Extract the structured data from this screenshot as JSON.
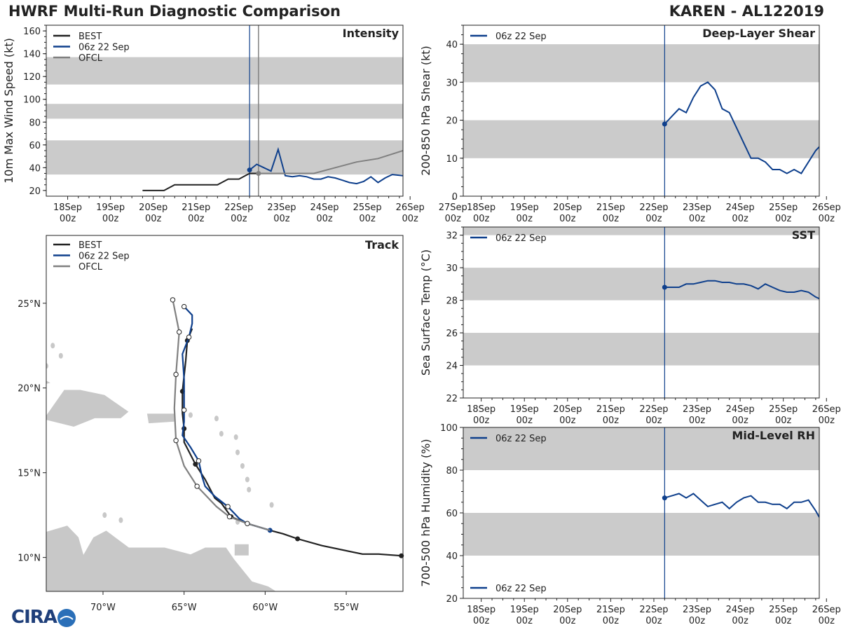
{
  "header": {
    "title": "HWRF Multi-Run Diagnostic Comparison",
    "storm": "KAREN - AL122019"
  },
  "logo": {
    "text": "CIRA"
  },
  "colors": {
    "best": "#222222",
    "run": "#0e3f8c",
    "ofcl": "#808080",
    "band": "#cbcbcb",
    "land": "#c8c8c8"
  },
  "time_ticks": [
    "18Sep\n00z",
    "19Sep\n00z",
    "20Sep\n00z",
    "21Sep\n00z",
    "22Sep\n00z",
    "23Sep\n00z",
    "24Sep\n00z",
    "25Sep\n00z",
    "26Sep\n00z",
    "27Sep\n00z"
  ],
  "init_time_hours": 102,
  "chart_data": [
    {
      "id": "intensity",
      "type": "line",
      "title": "Intensity",
      "ylabel": "10m Max Wind Speed (kt)",
      "ylim": [
        15,
        165
      ],
      "xlim": [
        -12,
        188
      ],
      "yticks": [
        20,
        40,
        60,
        80,
        100,
        120,
        140,
        160
      ],
      "bands": [
        [
          34,
          64
        ],
        [
          83,
          96
        ],
        [
          113,
          137
        ]
      ],
      "init_line": 102,
      "ofcl_line": 107,
      "legend": [
        "BEST",
        "06z 22 Sep",
        "OFCL"
      ],
      "series": [
        {
          "name": "BEST",
          "color": "best",
          "x": [
            42,
            48,
            54,
            60,
            66,
            72,
            78,
            84,
            90,
            96,
            102,
            108
          ],
          "y": [
            20,
            20,
            20,
            25,
            25,
            25,
            25,
            25,
            30,
            30,
            35,
            35
          ]
        },
        {
          "name": "06z 22 Sep",
          "color": "run",
          "x": [
            102,
            106,
            110,
            114,
            118,
            122,
            126,
            130,
            134,
            138,
            142,
            146,
            150,
            154,
            158,
            162,
            166,
            170,
            174,
            178,
            182,
            188
          ],
          "y": [
            38,
            43,
            40,
            37,
            56,
            33,
            32,
            33,
            32,
            30,
            30,
            32,
            31,
            29,
            27,
            26,
            28,
            32,
            27,
            31,
            34,
            33
          ],
          "marker_first": true
        },
        {
          "name": "OFCL",
          "color": "ofcl",
          "x": [
            107,
            114,
            126,
            138,
            150,
            162,
            174,
            188
          ],
          "y": [
            35,
            35,
            35,
            35,
            40,
            45,
            48,
            55
          ],
          "marker_first": true
        }
      ]
    },
    {
      "id": "shear",
      "type": "line",
      "title": "Deep-Layer Shear",
      "ylabel": "200-850 hPa Shear (kt)",
      "ylim": [
        0,
        45
      ],
      "xlim": [
        -10,
        188
      ],
      "yticks": [
        0,
        10,
        20,
        30,
        40
      ],
      "bands": [
        [
          10,
          20
        ],
        [
          30,
          40
        ]
      ],
      "init_line": 102,
      "legend": [
        "06z 22 Sep"
      ],
      "series": [
        {
          "name": "06z 22 Sep",
          "color": "run",
          "x": [
            102,
            106,
            110,
            114,
            118,
            122,
            126,
            130,
            134,
            138,
            142,
            146,
            150,
            154,
            158,
            162,
            166,
            170,
            174,
            178,
            182,
            186,
            188
          ],
          "y": [
            19,
            21,
            23,
            22,
            26,
            29,
            30,
            28,
            23,
            22,
            18,
            14,
            10,
            10,
            9,
            7,
            7,
            6,
            7,
            6,
            9,
            12,
            13
          ],
          "marker_first": true
        }
      ]
    },
    {
      "id": "sst",
      "type": "line",
      "title": "SST",
      "ylabel": "Sea Surface Temp (°C)",
      "ylim": [
        22,
        32.5
      ],
      "xlim": [
        -10,
        188
      ],
      "yticks": [
        22,
        24,
        26,
        28,
        30,
        32
      ],
      "bands": [
        [
          24,
          26
        ],
        [
          28,
          30
        ],
        [
          32,
          34
        ]
      ],
      "init_line": 102,
      "legend": [
        "06z 22 Sep"
      ],
      "series": [
        {
          "name": "06z 22 Sep",
          "color": "run",
          "x": [
            102,
            106,
            110,
            114,
            118,
            122,
            126,
            130,
            134,
            138,
            142,
            146,
            150,
            154,
            158,
            162,
            166,
            170,
            174,
            178,
            182,
            186,
            188
          ],
          "y": [
            28.8,
            28.8,
            28.8,
            29.0,
            29.0,
            29.1,
            29.2,
            29.2,
            29.1,
            29.1,
            29.0,
            29.0,
            28.9,
            28.7,
            29.0,
            28.8,
            28.6,
            28.5,
            28.5,
            28.6,
            28.5,
            28.2,
            28.1
          ],
          "marker_first": true
        }
      ]
    },
    {
      "id": "rh",
      "type": "line",
      "title": "Mid-Level RH",
      "ylabel": "700-500 hPa Humidity (%)",
      "ylim": [
        20,
        100
      ],
      "xlim": [
        -10,
        188
      ],
      "yticks": [
        20,
        40,
        60,
        80,
        100
      ],
      "bands": [
        [
          40,
          60
        ],
        [
          80,
          100
        ]
      ],
      "init_line": 102,
      "legend": [
        "06z 22 Sep"
      ],
      "series": [
        {
          "name": "06z 22 Sep",
          "color": "run",
          "x": [
            102,
            106,
            110,
            114,
            118,
            122,
            126,
            130,
            134,
            138,
            142,
            146,
            150,
            154,
            158,
            162,
            166,
            170,
            174,
            178,
            182,
            186,
            188
          ],
          "y": [
            67,
            68,
            69,
            67,
            69,
            66,
            63,
            64,
            65,
            62,
            65,
            67,
            68,
            65,
            65,
            64,
            64,
            62,
            65,
            65,
            66,
            61,
            58
          ],
          "marker_first": true
        }
      ]
    },
    {
      "id": "track",
      "type": "scatter",
      "title": "Track",
      "xlim": [
        -73.5,
        -51.5
      ],
      "ylim": [
        8,
        29
      ],
      "xticks": [
        -70,
        -65,
        -60,
        -55
      ],
      "xticklabels": [
        "70°W",
        "65°W",
        "60°W",
        "55°W"
      ],
      "yticks": [
        10,
        15,
        20,
        25
      ],
      "yticklabels": [
        "10°N",
        "15°N",
        "20°N",
        "25°N"
      ],
      "legend": [
        "BEST",
        "06z 22 Sep",
        "OFCL"
      ],
      "series": [
        {
          "name": "BEST",
          "color": "best",
          "lon": [
            -51.6,
            -53.0,
            -54.0,
            -56.5,
            -58.0,
            -58.9,
            -59.7,
            -61.1,
            -62.1,
            -62.7,
            -63.1,
            -63.7,
            -64.3,
            -65.0,
            -65.0,
            -65.1,
            -65.1,
            -64.9,
            -64.8,
            -64.5
          ],
          "lat": [
            10.1,
            10.2,
            10.2,
            10.7,
            11.1,
            11.4,
            11.6,
            12.0,
            12.4,
            13.2,
            13.5,
            14.6,
            15.5,
            16.8,
            17.6,
            18.5,
            19.8,
            21.6,
            22.8,
            23.5
          ],
          "filled": [
            0,
            4,
            8,
            12,
            14,
            16,
            18
          ]
        },
        {
          "name": "06z 22 Sep",
          "color": "run",
          "lon": [
            -59.7,
            -60.4,
            -61.1,
            -61.6,
            -62.3,
            -63.1,
            -63.7,
            -63.9,
            -64.1,
            -64.6,
            -65.1,
            -65.0,
            -65.0,
            -65.0,
            -65.0,
            -65.1,
            -64.7,
            -64.5,
            -64.5,
            -65.0
          ],
          "lat": [
            11.6,
            11.8,
            12.0,
            12.3,
            13.0,
            13.6,
            14.2,
            14.8,
            15.7,
            16.5,
            17.2,
            18.0,
            18.7,
            19.6,
            20.5,
            22.0,
            23.0,
            23.8,
            24.3,
            24.8
          ],
          "open": [
            0,
            4,
            8,
            12,
            16,
            19
          ]
        },
        {
          "name": "OFCL",
          "color": "ofcl",
          "lon": [
            -59.7,
            -61.1,
            -62.2,
            -63.0,
            -64.2,
            -65.0,
            -65.5,
            -65.6,
            -65.5,
            -65.3,
            -65.7
          ],
          "lat": [
            11.6,
            12.0,
            12.4,
            13.0,
            14.2,
            15.4,
            16.9,
            18.8,
            20.8,
            23.3,
            25.2
          ],
          "open": [
            1,
            2,
            4,
            6,
            8,
            9,
            10
          ]
        }
      ]
    }
  ]
}
